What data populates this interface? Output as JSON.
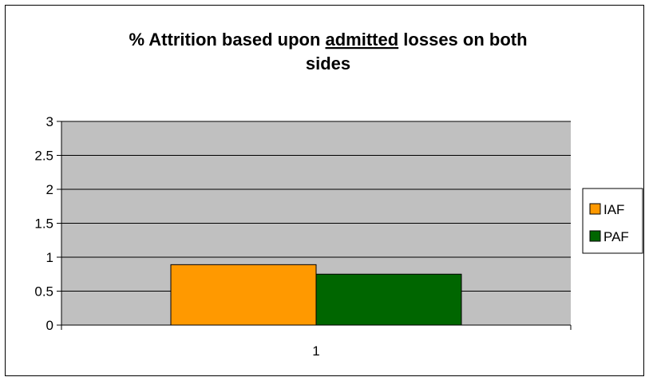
{
  "chart_data": {
    "type": "bar",
    "title": {
      "line1_before": "% Attrition based upon ",
      "line1_underlined": "admitted",
      "line1_after": " losses on both",
      "line2": "sides"
    },
    "xlabel": "",
    "ylabel": "",
    "categories": [
      "1"
    ],
    "series": [
      {
        "name": "IAF",
        "values": [
          0.89
        ],
        "color": "#FF9900"
      },
      {
        "name": "PAF",
        "values": [
          0.75
        ],
        "color": "#006600"
      }
    ],
    "ylim": [
      0,
      3
    ],
    "yticks": [
      0,
      0.5,
      1,
      1.5,
      2,
      2.5,
      3
    ],
    "ytick_labels": [
      "0",
      "0.5",
      "1",
      "1.5",
      "2",
      "2.5",
      "3"
    ],
    "grid": true,
    "legend_position": "right",
    "plot_background": "#C0C0C0"
  }
}
